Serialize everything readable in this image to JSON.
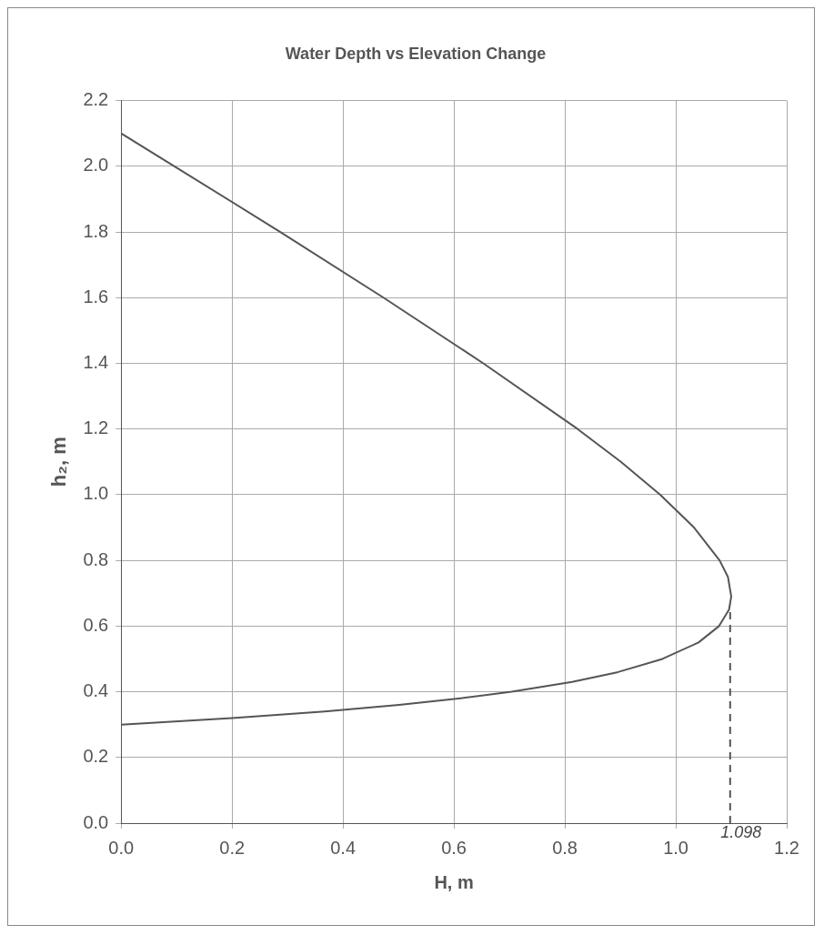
{
  "chart_data": {
    "type": "line",
    "title": "Water Depth vs Elevation Change",
    "xlabel": "H, m",
    "ylabel": "h₂, m",
    "xlim": [
      0,
      1.2
    ],
    "xticks": [
      {
        "value": 0,
        "label": "0.0"
      },
      {
        "value": 0.2,
        "label": "0.2"
      },
      {
        "value": 0.4,
        "label": "0.4"
      },
      {
        "value": 0.6,
        "label": "0.6"
      },
      {
        "value": 0.8,
        "label": "0.8"
      },
      {
        "value": 1,
        "label": "1.0"
      },
      {
        "value": 1.2,
        "label": "1.2"
      }
    ],
    "ylim": [
      0,
      2.2
    ],
    "yticks": [
      {
        "value": 0,
        "label": "0.0"
      },
      {
        "value": 0.2,
        "label": "0.2"
      },
      {
        "value": 0.4,
        "label": "0.4"
      },
      {
        "value": 0.6,
        "label": "0.6"
      },
      {
        "value": 0.8,
        "label": "0.8"
      },
      {
        "value": 1,
        "label": "1.0"
      },
      {
        "value": 1.2,
        "label": "1.2"
      },
      {
        "value": 1.4,
        "label": "1.4"
      },
      {
        "value": 1.6,
        "label": "1.6"
      },
      {
        "value": 1.8,
        "label": "1.8"
      },
      {
        "value": 2,
        "label": "2.0"
      },
      {
        "value": 2.2,
        "label": "2.2"
      }
    ],
    "grid": true,
    "legend": false,
    "marker": "none",
    "series": [
      {
        "color": "#555555",
        "line_style": "solid",
        "x": [
          0,
          0.096,
          0.287,
          0.473,
          0.653,
          0.823,
          0.901,
          0.972,
          1.033,
          1.079,
          1.094,
          1.1,
          1.096,
          1.078,
          1.041,
          0.976,
          0.896,
          0.813,
          0.704,
          0.612,
          0.501,
          0.367,
          0.2,
          0
        ],
        "values": [
          2.1,
          2.0,
          1.8,
          1.6,
          1.4,
          1.2,
          1.1,
          1.0,
          0.9,
          0.8,
          0.75,
          0.69,
          0.65,
          0.6,
          0.55,
          0.5,
          0.46,
          0.43,
          0.4,
          0.38,
          0.36,
          0.34,
          0.32,
          0.3
        ]
      },
      {
        "color": "#555555",
        "line_style": "dashed",
        "x": [
          1.098,
          1.098
        ],
        "values": [
          0,
          0.66
        ]
      }
    ],
    "annotations": [
      {
        "text": "1.098",
        "x": 1.098,
        "y": 0
      }
    ]
  }
}
